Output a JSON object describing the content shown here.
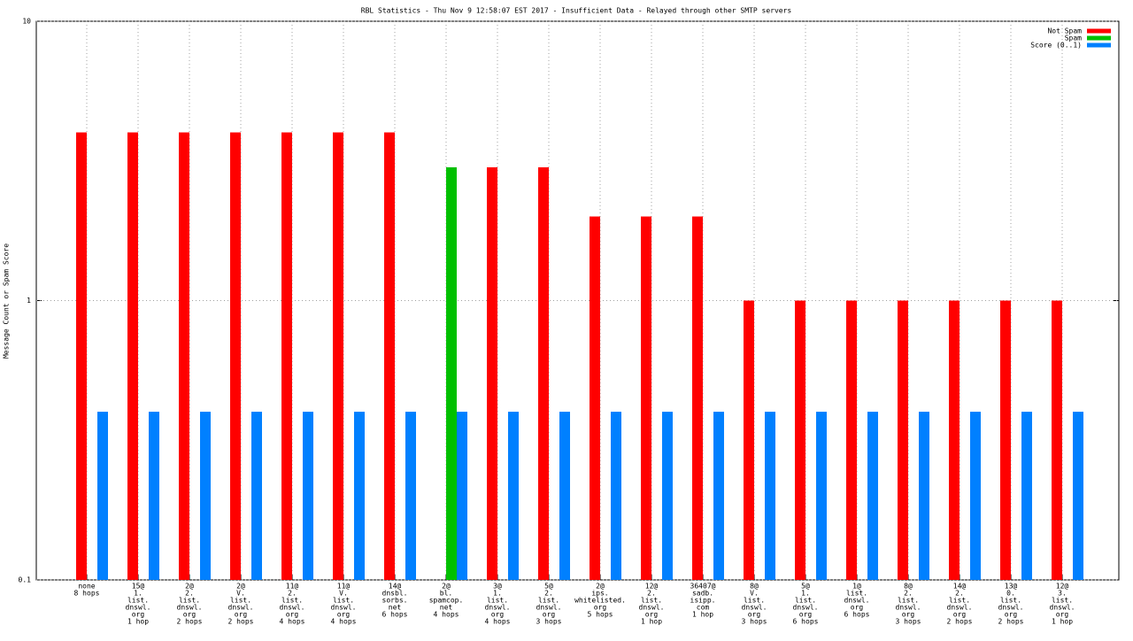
{
  "chart_data": {
    "type": "bar",
    "title": "RBL Statistics - Thu Nov  9 12:58:07 EST 2017 - Insufficient Data - Relayed through other SMTP servers",
    "y_label": "Message Count or Spam Score",
    "categories": [
      [
        "none",
        "8 hops"
      ],
      [
        "15@",
        "1.",
        "list.",
        "dnswl.",
        "org",
        "1 hop"
      ],
      [
        "2@",
        "2.",
        "list.",
        "dnswl.",
        "org",
        "2 hops"
      ],
      [
        "2@",
        "V.",
        "list.",
        "dnswl.",
        "org",
        "2 hops"
      ],
      [
        "11@",
        "2.",
        "list.",
        "dnswl.",
        "org",
        "4 hops"
      ],
      [
        "11@",
        "V.",
        "list.",
        "dnswl.",
        "org",
        "4 hops"
      ],
      [
        "14@",
        "dnsbl.",
        "sorbs.",
        "net",
        "6 hops"
      ],
      [
        "2@",
        "bl.",
        "spamcop.",
        "net",
        "4 hops"
      ],
      [
        "3@",
        "1.",
        "list.",
        "dnswl.",
        "org",
        "4 hops"
      ],
      [
        "5@",
        "2.",
        "list.",
        "dnswl.",
        "org",
        "3 hops"
      ],
      [
        "2@",
        "ips.",
        "whitelisted.",
        "org",
        "5 hops"
      ],
      [
        "12@",
        "2.",
        "list.",
        "dnswl.",
        "org",
        "1 hop"
      ],
      [
        "36407@",
        "sadb.",
        "isipp.",
        "com",
        "1 hop"
      ],
      [
        "8@",
        "V.",
        "list.",
        "dnswl.",
        "org",
        "3 hops"
      ],
      [
        "5@",
        "1.",
        "list.",
        "dnswl.",
        "org",
        "6 hops"
      ],
      [
        "1@",
        "list.",
        "dnswl.",
        "org",
        "6 hops"
      ],
      [
        "8@",
        "2.",
        "list.",
        "dnswl.",
        "org",
        "3 hops"
      ],
      [
        "14@",
        "2.",
        "list.",
        "dnswl.",
        "org",
        "2 hops"
      ],
      [
        "13@",
        "0.",
        "list.",
        "dnswl.",
        "org",
        "2 hops"
      ],
      [
        "12@",
        "3.",
        "list.",
        "dnswl.",
        "org",
        "1 hop"
      ]
    ],
    "series": [
      {
        "name": "Not Spam",
        "color": "#ff0000",
        "values": [
          4,
          4,
          4,
          4,
          4,
          4,
          4,
          null,
          3,
          3,
          2,
          2,
          2,
          1,
          1,
          1,
          1,
          1,
          1,
          1
        ]
      },
      {
        "name": "Spam",
        "color": "#00c000",
        "values": [
          null,
          null,
          null,
          null,
          null,
          null,
          null,
          3,
          null,
          null,
          null,
          null,
          null,
          null,
          null,
          null,
          null,
          null,
          null,
          null
        ]
      },
      {
        "name": "Score (0..1)",
        "color": "#0080ff",
        "values": [
          0.4,
          0.4,
          0.4,
          0.4,
          0.4,
          0.4,
          0.4,
          0.4,
          0.4,
          0.4,
          0.4,
          0.4,
          0.4,
          0.4,
          0.4,
          0.4,
          0.4,
          0.4,
          0.4,
          0.4
        ]
      }
    ],
    "ylim": [
      0.1,
      10
    ],
    "yticks": [
      0.1,
      1,
      10
    ],
    "ylog": true,
    "grid": true,
    "legend": "top-right"
  }
}
